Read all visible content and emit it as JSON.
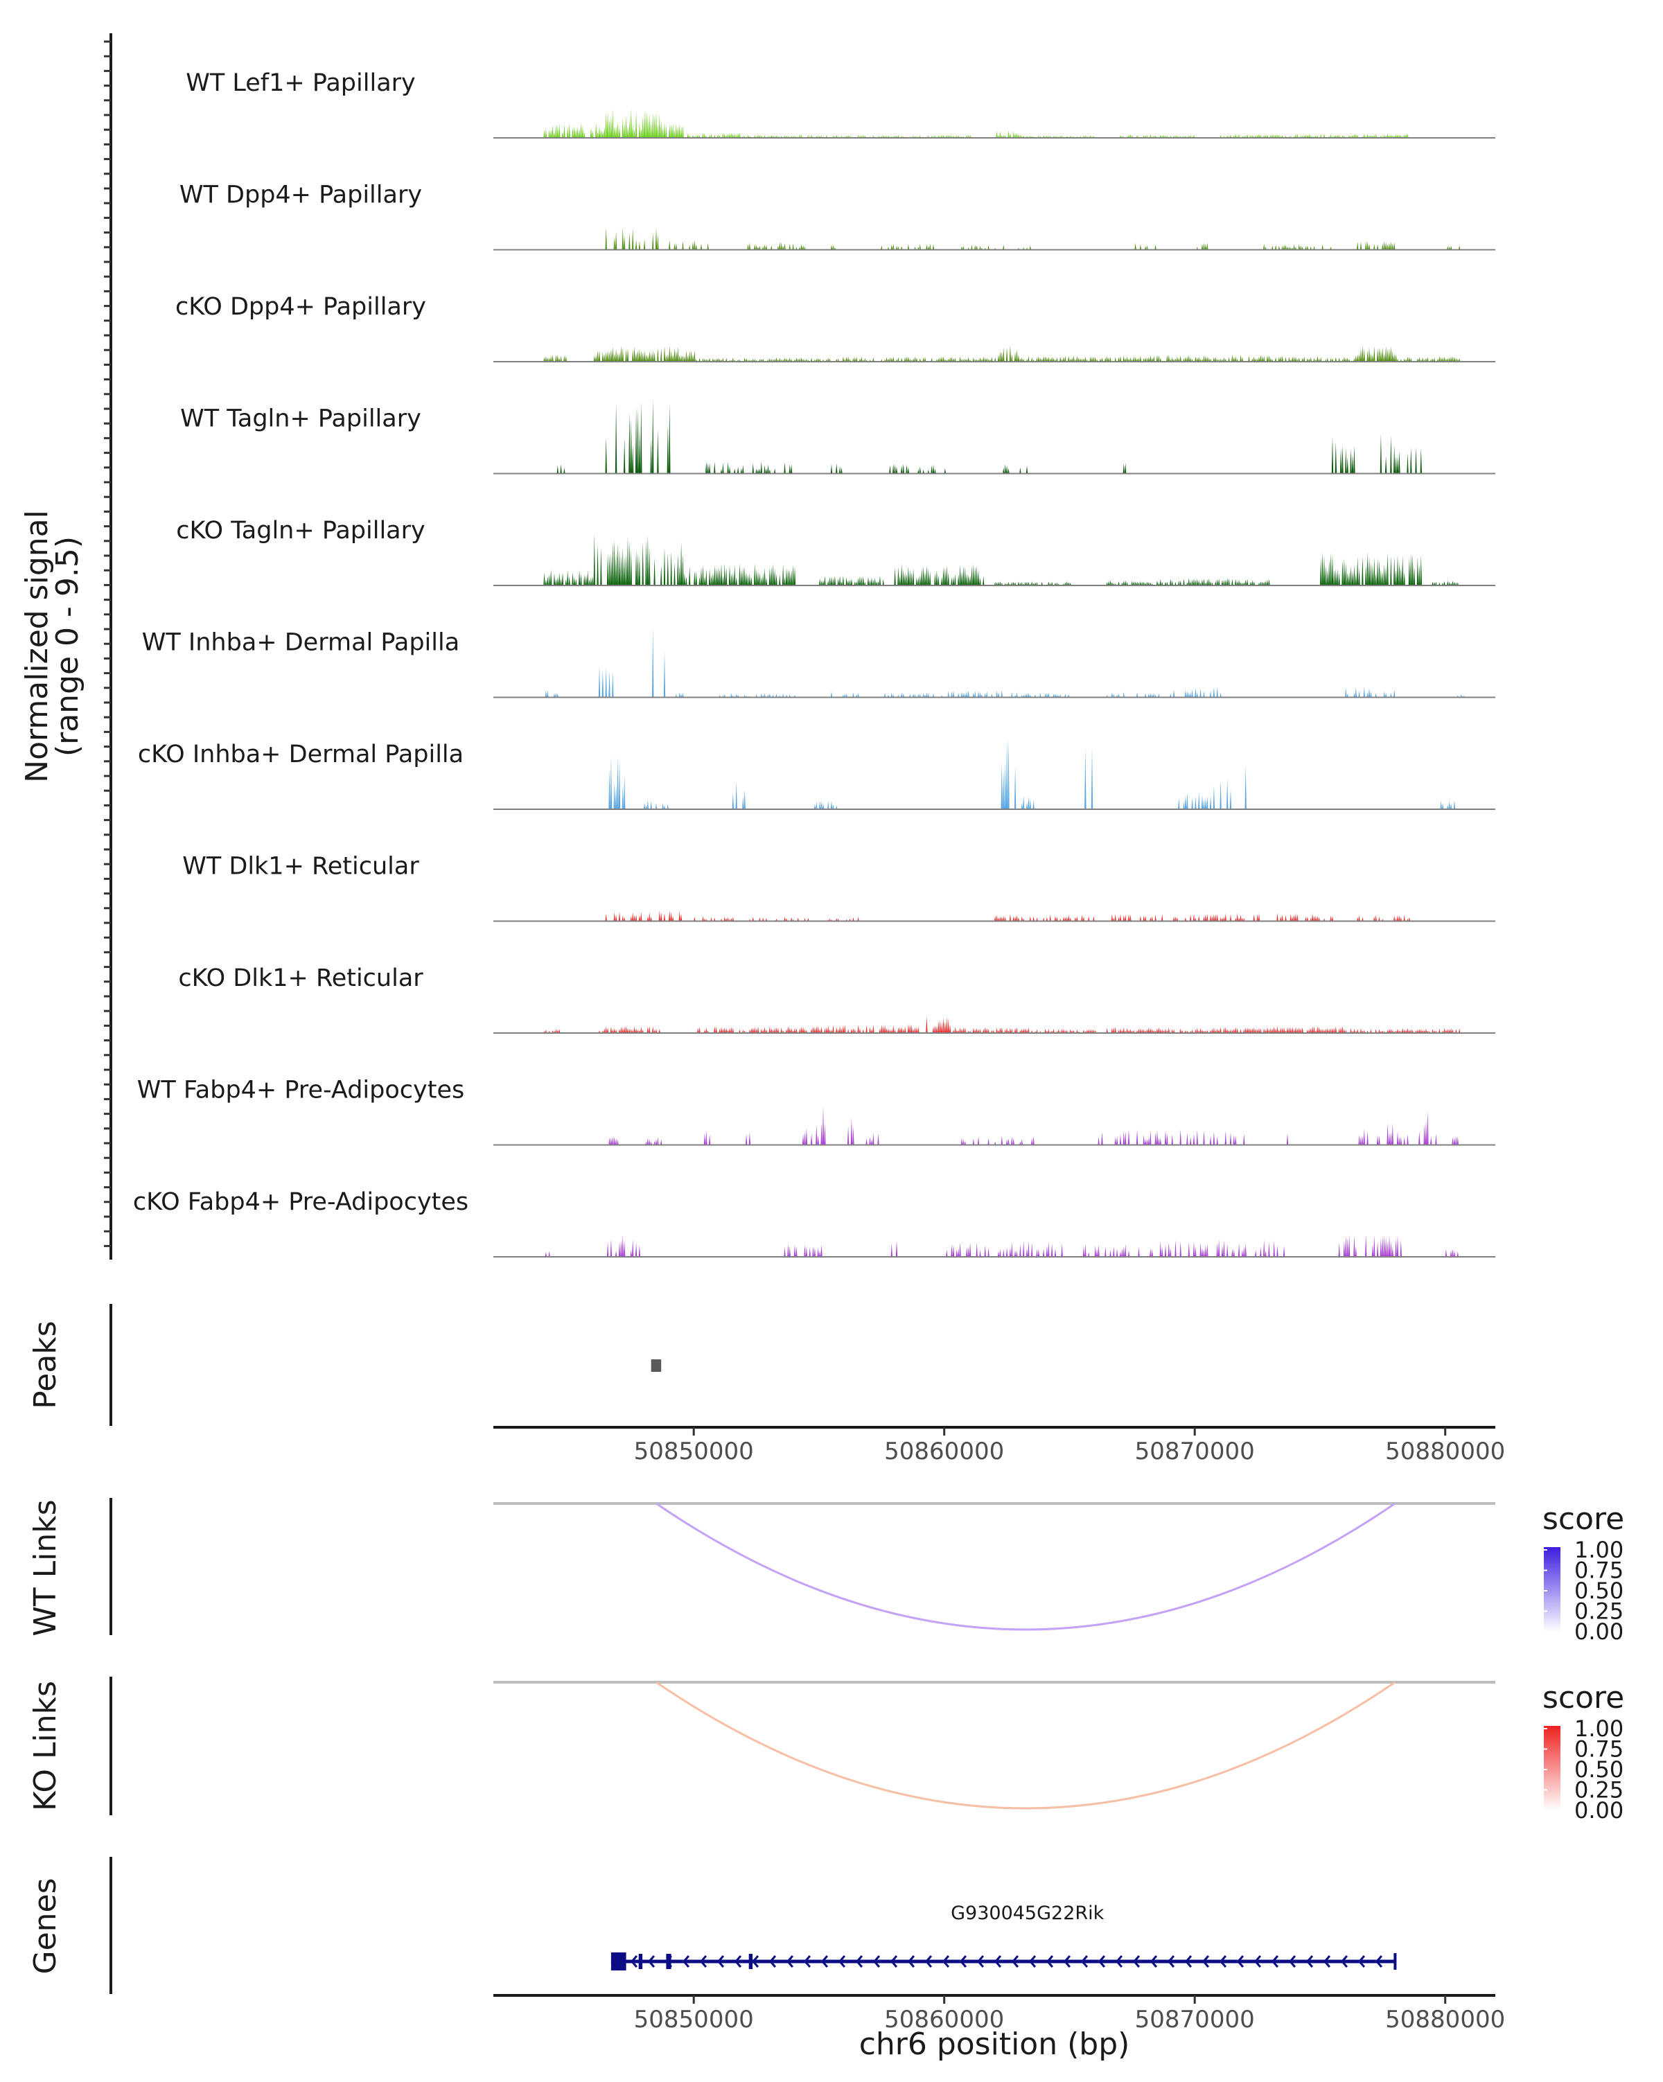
{
  "chart_data": {
    "type": "genome-browser",
    "chromosome": "chr6",
    "region": [
      50842000,
      50882000
    ],
    "coverage": {
      "ylabel": [
        "Normalized signal",
        "(range 0 - 9.5)"
      ],
      "yrange": [
        0,
        9.5
      ],
      "tracks": [
        {
          "name": "WT Lef1+ Papillary",
          "color": "#6ed01e"
        },
        {
          "name": "WT Dpp4+ Papillary",
          "color": "#4f8f12"
        },
        {
          "name": "cKO Dpp4+ Papillary",
          "color": "#4c8a0c"
        },
        {
          "name": "WT Tagln+ Papillary",
          "color": "#0a5a0a"
        },
        {
          "name": "cKO Tagln+ Papillary",
          "color": "#0d640d"
        },
        {
          "name": "WT Inhba+ Dermal Papilla",
          "color": "#5aa7e3"
        },
        {
          "name": "cKO Inhba+ Dermal Papilla",
          "color": "#5aa7e3"
        },
        {
          "name": "WT Dlk1+ Reticular",
          "color": "#ee2a2a"
        },
        {
          "name": "cKO Dlk1+ Reticular",
          "color": "#ee2a2a"
        },
        {
          "name": "WT Fabp4+ Pre-Adipocytes",
          "color": "#a83fd8"
        },
        {
          "name": "cKO Fabp4+ Pre-Adipocytes",
          "color": "#a83fd8"
        }
      ]
    },
    "peaks": {
      "label": "Peaks",
      "color": "#5a5a5a",
      "items": [
        {
          "start": 50848300,
          "end": 50848700
        }
      ]
    },
    "x_axis": {
      "ticks": [
        50850000,
        50860000,
        50870000,
        50880000
      ],
      "tick_labels": [
        "50850000",
        "50860000",
        "50870000",
        "50880000"
      ]
    },
    "links": [
      {
        "label": "WT Links",
        "start": 50848500,
        "end": 50878000,
        "score": 0.3,
        "color": "#c3a3f7",
        "legend": {
          "title": "score",
          "ticks": [
            "1.00",
            "0.75",
            "0.50",
            "0.25",
            "0.00"
          ],
          "high": "#3f1ce0",
          "low": "#ffffff"
        }
      },
      {
        "label": "KO Links",
        "start": 50848500,
        "end": 50878000,
        "score": 0.3,
        "color": "#f7bfa5",
        "legend": {
          "title": "score",
          "ticks": [
            "1.00",
            "0.75",
            "0.50",
            "0.25",
            "0.00"
          ],
          "high": "#ee2222",
          "low": "#ffffff"
        }
      }
    ],
    "genes": {
      "label": "Genes",
      "color": "#0c0c86",
      "items": [
        {
          "name": "G930045G22Rik",
          "start": 50846700,
          "end": 50878000,
          "strand": "-",
          "exons": [
            [
              50846700,
              50847300
            ],
            [
              50847800,
              50847950
            ],
            [
              50848900,
              50849100
            ],
            [
              50852200,
              50852350
            ]
          ]
        }
      ]
    },
    "xlabel": "chr6 position (bp)"
  }
}
